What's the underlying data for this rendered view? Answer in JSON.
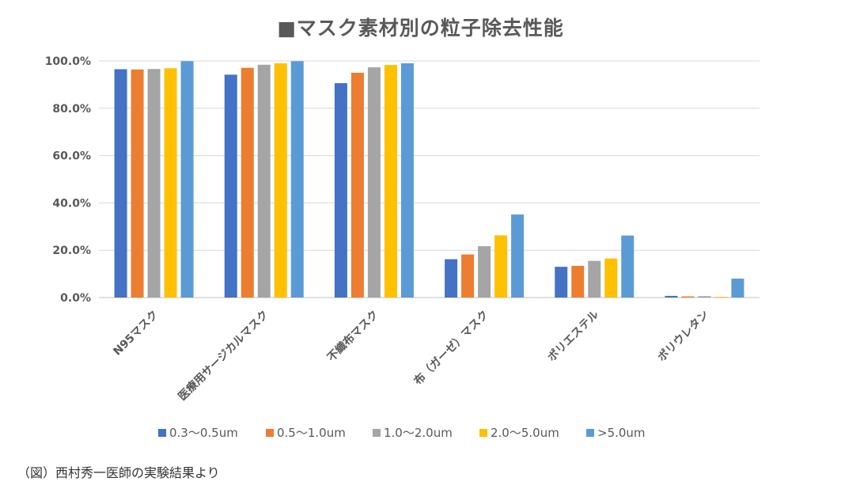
{
  "chart_data": {
    "type": "bar",
    "title": "■マスク素材別の粒子除去性能",
    "xlabel": "",
    "ylabel": "",
    "ylim": [
      0,
      100
    ],
    "yticks": [
      "0.0%",
      "20.0%",
      "40.0%",
      "60.0%",
      "80.0%",
      "100.0%"
    ],
    "grid": true,
    "legend_position": "bottom",
    "categories": [
      "N95マスク",
      "医療用サージカルマスク",
      "不織布マスク",
      "布（ガーゼ）マスク",
      "ポリエステル",
      "ポリウレタン"
    ],
    "series": [
      {
        "name": "0.3〜0.5um",
        "color": "#4472C4",
        "values": [
          96.5,
          94.2,
          90.6,
          16.2,
          13.0,
          0.7
        ]
      },
      {
        "name": "0.5〜1.0um",
        "color": "#ED7D31",
        "values": [
          96.4,
          97.1,
          95.0,
          18.2,
          13.4,
          0.5
        ]
      },
      {
        "name": "1.0〜2.0um",
        "color": "#A5A5A5",
        "values": [
          96.6,
          98.4,
          97.3,
          21.7,
          15.5,
          0.6
        ]
      },
      {
        "name": "2.0〜5.0um",
        "color": "#FFC000",
        "values": [
          96.9,
          99.0,
          98.3,
          26.3,
          16.5,
          0.3
        ]
      },
      {
        "name": ">5.0um",
        "color": "#5B9BD5",
        "values": [
          99.9,
          99.9,
          99.0,
          35.1,
          26.2,
          8.0
        ]
      }
    ]
  },
  "caption": "（図）西村秀一医師の実験結果より"
}
